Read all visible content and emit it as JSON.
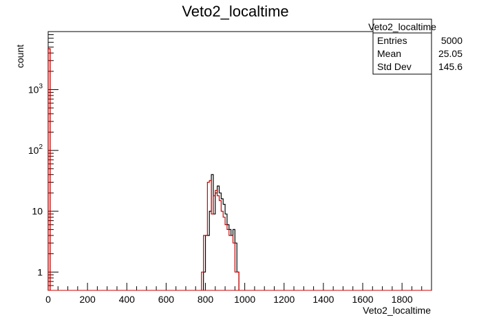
{
  "chart_data": {
    "type": "histogram",
    "title": "Veto2_localtime",
    "xlabel": "Veto2_localtime",
    "ylabel": "count",
    "xlim": [
      0,
      1950
    ],
    "ylim_log": [
      0.5,
      9000
    ],
    "y_scale": "log",
    "x_ticks": [
      "0",
      "200",
      "400",
      "600",
      "800",
      "1000",
      "1200",
      "1400",
      "1600",
      "1800"
    ],
    "y_ticks": [
      {
        "base": "1",
        "exp": ""
      },
      {
        "base": "10",
        "exp": ""
      },
      {
        "base": "10",
        "exp": "2"
      },
      {
        "base": "10",
        "exp": "3"
      }
    ],
    "bin_width": 10,
    "series": [
      {
        "color": "#000000",
        "bins": [
          {
            "x": 0,
            "y": 4700
          },
          {
            "x": 790,
            "y": 1
          },
          {
            "x": 800,
            "y": 4
          },
          {
            "x": 810,
            "y": 4
          },
          {
            "x": 820,
            "y": 10
          },
          {
            "x": 830,
            "y": 40
          },
          {
            "x": 840,
            "y": 9
          },
          {
            "x": 850,
            "y": 20
          },
          {
            "x": 860,
            "y": 26
          },
          {
            "x": 870,
            "y": 20
          },
          {
            "x": 880,
            "y": 16
          },
          {
            "x": 890,
            "y": 13
          },
          {
            "x": 900,
            "y": 9
          },
          {
            "x": 910,
            "y": 6
          },
          {
            "x": 920,
            "y": 5
          },
          {
            "x": 930,
            "y": 4
          },
          {
            "x": 940,
            "y": 5
          },
          {
            "x": 950,
            "y": 3
          },
          {
            "x": 960,
            "y": 1
          }
        ]
      },
      {
        "color": "#cc0000",
        "bins": [
          {
            "x": 0,
            "y": 4700
          },
          {
            "x": 780,
            "y": 1
          },
          {
            "x": 790,
            "y": 4
          },
          {
            "x": 800,
            "y": 4
          },
          {
            "x": 810,
            "y": 30
          },
          {
            "x": 820,
            "y": 32
          },
          {
            "x": 830,
            "y": 9
          },
          {
            "x": 840,
            "y": 18
          },
          {
            "x": 850,
            "y": 22
          },
          {
            "x": 860,
            "y": 18
          },
          {
            "x": 870,
            "y": 15
          },
          {
            "x": 880,
            "y": 10
          },
          {
            "x": 890,
            "y": 8
          },
          {
            "x": 900,
            "y": 6
          },
          {
            "x": 910,
            "y": 5
          },
          {
            "x": 920,
            "y": 4
          },
          {
            "x": 930,
            "y": 4
          },
          {
            "x": 940,
            "y": 3
          },
          {
            "x": 950,
            "y": 1
          },
          {
            "x": 960,
            "y": 1
          }
        ]
      }
    ]
  },
  "stats_box": {
    "title": "Veto2_localtime",
    "rows": [
      {
        "label": "Entries",
        "value": "5000"
      },
      {
        "label": "Mean",
        "value": "25.05"
      },
      {
        "label": "Std Dev",
        "value": "145.6"
      }
    ]
  }
}
